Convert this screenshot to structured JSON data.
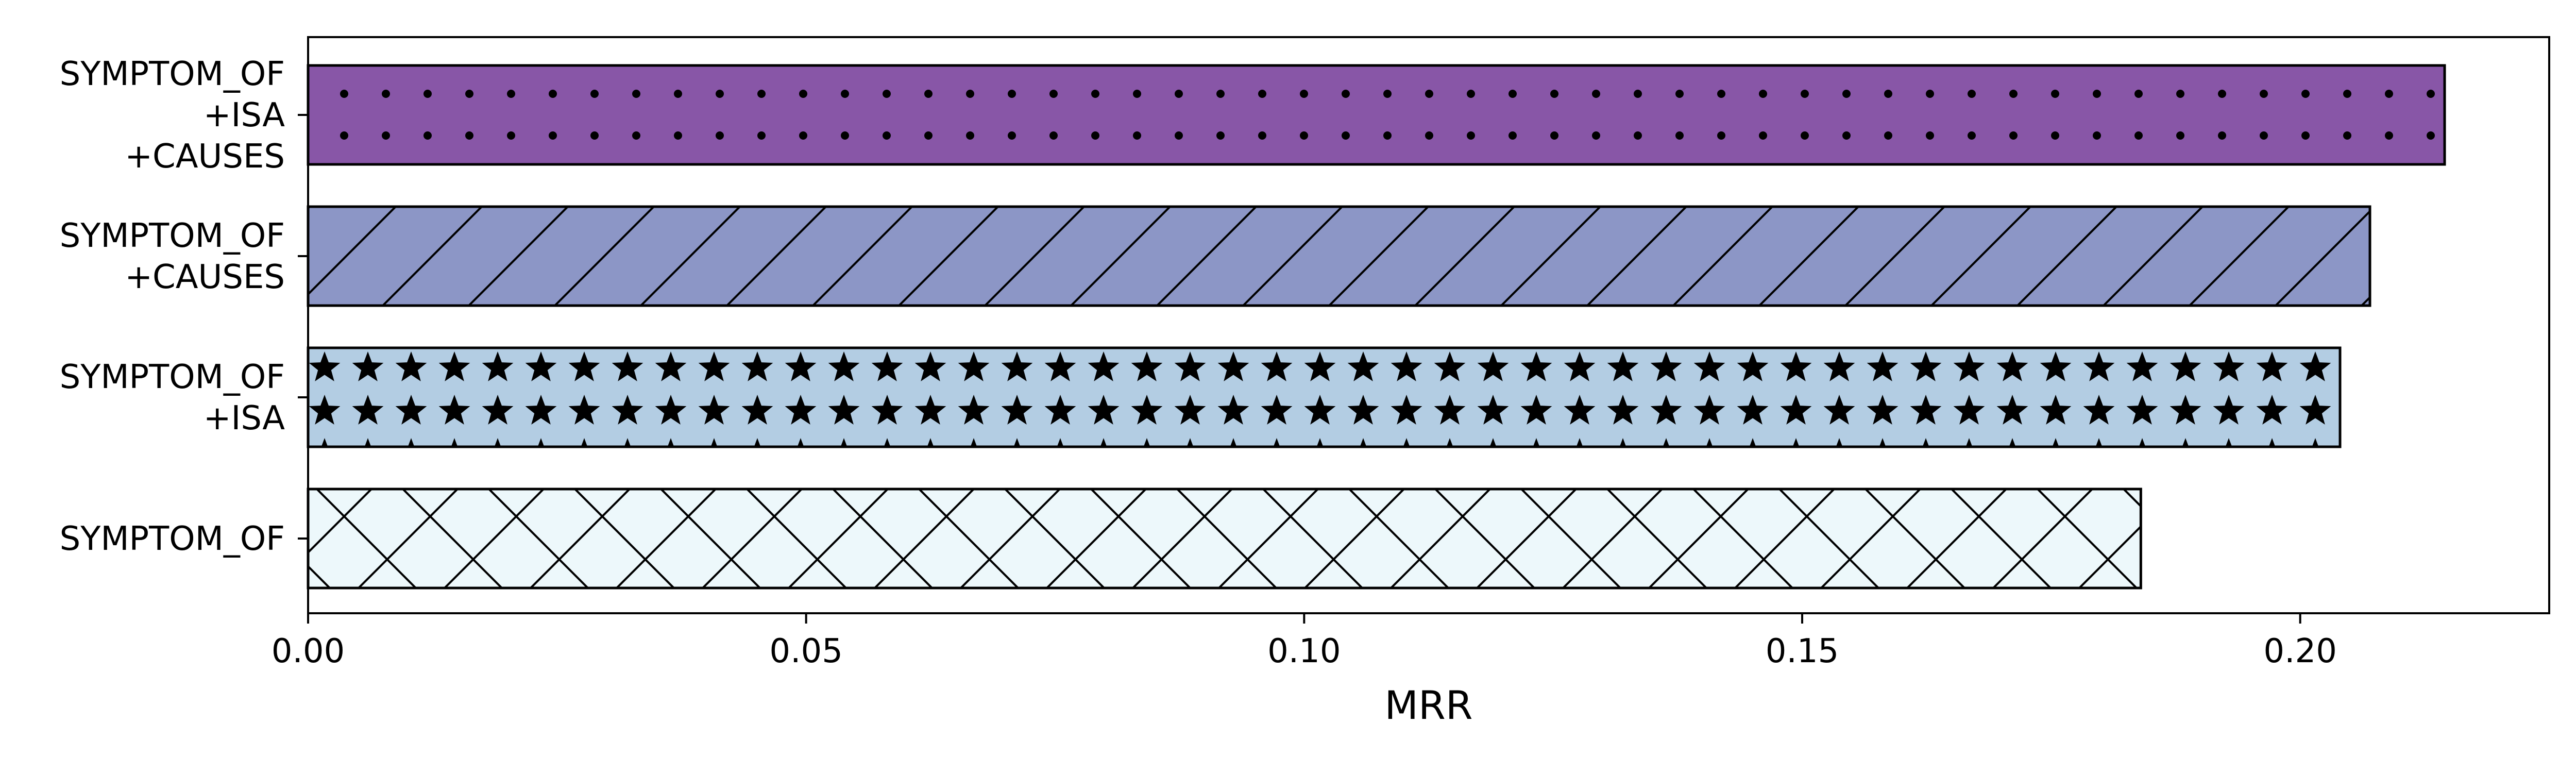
{
  "chart_data": {
    "type": "bar",
    "orientation": "horizontal",
    "xlabel": "MRR",
    "ylabel": "",
    "title": "",
    "xlim": [
      0.0,
      0.225
    ],
    "xticks": [
      "0.00",
      "0.05",
      "0.10",
      "0.15",
      "0.20"
    ],
    "grid": false,
    "categories": [
      {
        "label_lines": [
          "SYMPTOM_OF",
          "+ISA",
          "+CAUSES"
        ],
        "value": 0.2145,
        "color": "#8856a7",
        "hatch": "dots"
      },
      {
        "label_lines": [
          "SYMPTOM_OF",
          "+CAUSES"
        ],
        "value": 0.207,
        "color": "#8c96c6",
        "hatch": "diagonal"
      },
      {
        "label_lines": [
          "SYMPTOM_OF",
          "+ISA"
        ],
        "value": 0.204,
        "color": "#b3cde3",
        "hatch": "stars"
      },
      {
        "label_lines": [
          "SYMPTOM_OF"
        ],
        "value": 0.184,
        "color": "#edf8fb",
        "hatch": "crosshatch"
      }
    ]
  }
}
